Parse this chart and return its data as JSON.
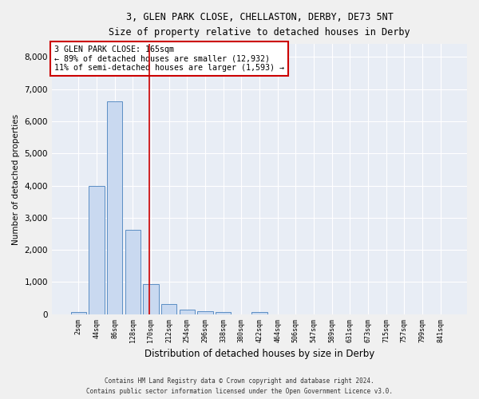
{
  "title_line1": "3, GLEN PARK CLOSE, CHELLASTON, DERBY, DE73 5NT",
  "title_line2": "Size of property relative to detached houses in Derby",
  "xlabel": "Distribution of detached houses by size in Derby",
  "ylabel": "Number of detached properties",
  "bar_labels": [
    "2sqm",
    "44sqm",
    "86sqm",
    "128sqm",
    "170sqm",
    "212sqm",
    "254sqm",
    "296sqm",
    "338sqm",
    "380sqm",
    "422sqm",
    "464sqm",
    "506sqm",
    "547sqm",
    "589sqm",
    "631sqm",
    "673sqm",
    "715sqm",
    "757sqm",
    "799sqm",
    "841sqm"
  ],
  "bar_values": [
    60,
    3980,
    6620,
    2620,
    950,
    310,
    140,
    100,
    70,
    0,
    70,
    0,
    0,
    0,
    0,
    0,
    0,
    0,
    0,
    0,
    0
  ],
  "bar_color": "#c9d9f0",
  "bar_edge_color": "#5b8ec4",
  "property_line_label": "3 GLEN PARK CLOSE: 165sqm",
  "annotation_line1": "← 89% of detached houses are smaller (12,932)",
  "annotation_line2": "11% of semi-detached houses are larger (1,593) →",
  "annotation_box_color": "#ffffff",
  "annotation_box_edge": "#cc0000",
  "vline_color": "#cc0000",
  "ylim": [
    0,
    8400
  ],
  "yticks": [
    0,
    1000,
    2000,
    3000,
    4000,
    5000,
    6000,
    7000,
    8000
  ],
  "bg_color": "#e8edf5",
  "grid_color": "#ffffff",
  "footer_line1": "Contains HM Land Registry data © Crown copyright and database right 2024.",
  "footer_line2": "Contains public sector information licensed under the Open Government Licence v3.0."
}
